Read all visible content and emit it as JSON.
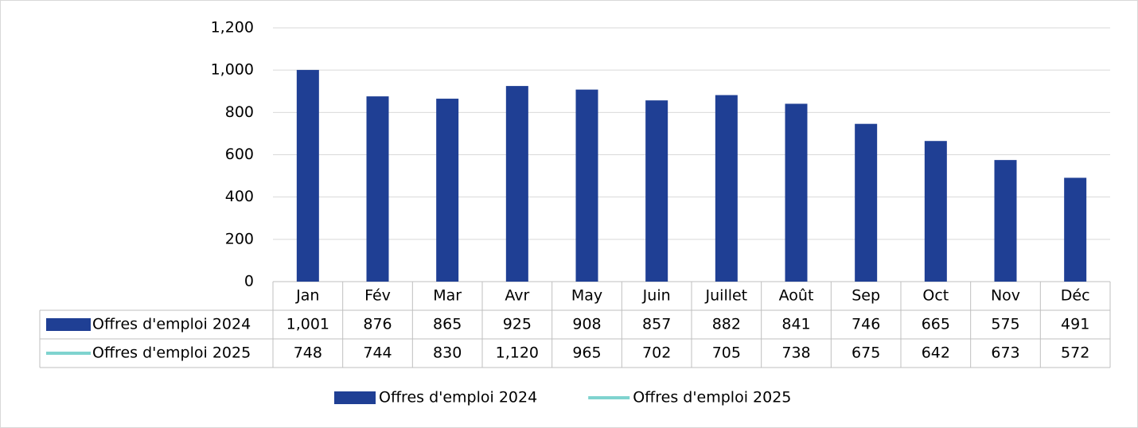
{
  "chart_data": {
    "type": "bar",
    "categories": [
      "Jan",
      "Fév",
      "Mar",
      "Avr",
      "May",
      "Juin",
      "Juillet",
      "Août",
      "Sep",
      "Oct",
      "Nov",
      "Déc"
    ],
    "series": [
      {
        "name": "Offres d'emploi 2024",
        "type": "bar",
        "color": "#1f3f94",
        "values": [
          1001,
          876,
          865,
          925,
          908,
          857,
          882,
          841,
          746,
          665,
          575,
          491
        ],
        "value_labels": [
          "1,001",
          "876",
          "865",
          "925",
          "908",
          "857",
          "882",
          "841",
          "746",
          "665",
          "575",
          "491"
        ]
      },
      {
        "name": "Offres d'emploi 2025",
        "type": "line",
        "color": "#7fd3cf",
        "values": [
          748,
          744,
          830,
          1120,
          965,
          702,
          705,
          738,
          675,
          642,
          673,
          572
        ],
        "value_labels": [
          "748",
          "744",
          "830",
          "1,120",
          "965",
          "702",
          "705",
          "738",
          "675",
          "642",
          "673",
          "572"
        ]
      }
    ],
    "ylim": [
      0,
      1200
    ],
    "yticks": [
      0,
      200,
      400,
      600,
      800,
      {
        "value": 1000,
        "label": "1,000"
      },
      {
        "value": 1200,
        "label": "1,200"
      }
    ],
    "grid": true,
    "legend": "bottom",
    "data_table": true
  }
}
